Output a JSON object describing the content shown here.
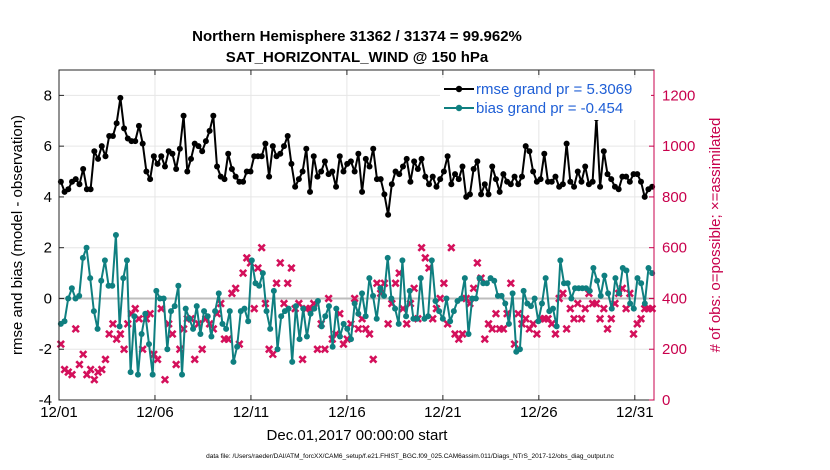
{
  "chart_data": {
    "type": "line",
    "title": "Northern Hemisphere 31362 / 31374 = 99.962%",
    "subtitle": "SAT_HORIZONTAL_WIND @ 150 hPa",
    "xlabel": "Dec.01,2017 00:00:00 start",
    "ylabel": "rmse and bias (model - observation)",
    "y2label": "# of obs: o=possible; ×=assimilated",
    "x_range_days": [
      0,
      31
    ],
    "ylim": [
      -4,
      9
    ],
    "y2lim": [
      0,
      1300
    ],
    "x_ticks": [
      {
        "day": 0,
        "label": "12/01"
      },
      {
        "day": 5,
        "label": "12/06"
      },
      {
        "day": 10,
        "label": "12/11"
      },
      {
        "day": 15,
        "label": "12/16"
      },
      {
        "day": 20,
        "label": "12/21"
      },
      {
        "day": 25,
        "label": "12/26"
      },
      {
        "day": 30,
        "label": "12/31"
      }
    ],
    "y_ticks": [
      {
        "value": 8,
        "label": "8"
      },
      {
        "value": 6,
        "label": "6"
      },
      {
        "value": 4,
        "label": "4"
      },
      {
        "value": 2,
        "label": "2"
      },
      {
        "value": 0,
        "label": "0"
      },
      {
        "value": -2,
        "label": "-2"
      },
      {
        "value": -4,
        "label": "-4"
      }
    ],
    "y2_ticks": [
      {
        "value": 1200,
        "label": "1200"
      },
      {
        "value": 1000,
        "label": "1000"
      },
      {
        "value": 800,
        "label": "800"
      },
      {
        "value": 600,
        "label": "600"
      },
      {
        "value": 400,
        "label": "400"
      },
      {
        "value": 200,
        "label": "200"
      },
      {
        "value": 0,
        "label": "0"
      }
    ],
    "grid": true,
    "zero_line": 0,
    "legend_position": "top-right",
    "series": [
      {
        "name": "rmse grand pr = 5.3069",
        "color": "#000000",
        "axis": "left",
        "values": [
          4.6,
          4.2,
          4.3,
          4.6,
          4.7,
          4.5,
          5.1,
          4.3,
          4.3,
          5.8,
          5.5,
          6.0,
          5.6,
          6.4,
          6.4,
          6.9,
          7.9,
          6.7,
          6.3,
          6.2,
          6.2,
          6.8,
          6.1,
          5.0,
          4.7,
          5.6,
          5.3,
          5.6,
          5.2,
          5.8,
          5.7,
          5.1,
          5.9,
          7.2,
          5.0,
          5.5,
          6.1,
          6.0,
          5.8,
          6.2,
          6.6,
          7.2,
          5.2,
          4.8,
          4.7,
          5.7,
          5.1,
          4.8,
          4.6,
          4.6,
          5.0,
          5.0,
          5.6,
          5.6,
          5.6,
          6.1,
          4.8,
          6.0,
          5.6,
          5.7,
          6.0,
          6.4,
          5.3,
          4.4,
          4.7,
          5.0,
          5.9,
          4.2,
          5.6,
          4.8,
          5.0,
          5.4,
          4.9,
          5.0,
          4.4,
          5.6,
          5.0,
          5.3,
          5.4,
          5.0,
          5.7,
          4.2,
          5.5,
          5.2,
          5.9,
          4.7,
          4.7,
          4.1,
          3.3,
          4.5,
          5.0,
          4.9,
          5.2,
          5.5,
          4.6,
          5.4,
          5.1,
          5.5,
          4.8,
          4.5,
          4.8,
          4.4,
          4.7,
          5.0,
          5.6,
          4.5,
          4.9,
          4.7,
          5.2,
          4.0,
          4.1,
          5.1,
          5.4,
          4.1,
          4.5,
          4.1,
          5.2,
          4.7,
          4.2,
          4.9,
          4.6,
          4.5,
          4.8,
          4.5,
          4.8,
          6.0,
          5.8,
          5.0,
          4.6,
          4.7,
          5.7,
          4.6,
          4.6,
          4.8,
          4.4,
          4.5,
          6.1,
          4.6,
          4.4,
          5.0,
          4.6,
          5.2,
          4.5,
          4.6,
          7.1,
          4.4,
          5.8,
          4.9,
          4.7,
          4.4,
          4.3,
          4.8,
          4.8,
          4.6,
          4.9,
          4.9,
          4.6,
          4.0,
          4.3,
          4.4
        ]
      },
      {
        "name": "bias grand pr = -0.454",
        "color": "#0f7f80",
        "axis": "left",
        "values": [
          -1.0,
          -0.9,
          0.0,
          0.4,
          0.0,
          0.1,
          1.6,
          2.0,
          0.8,
          -0.5,
          -1.2,
          0.7,
          1.5,
          0.5,
          0.5,
          2.5,
          -1.1,
          0.8,
          1.5,
          -2.9,
          -0.7,
          -3.0,
          -1.4,
          -0.6,
          -1.8,
          -3.0,
          0.3,
          0.0,
          0.0,
          -2.0,
          -0.5,
          -0.3,
          0.5,
          -3.0,
          -0.4,
          -0.8,
          -1.2,
          -0.3,
          -1.4,
          -0.5,
          -0.7,
          -1.5,
          -0.5,
          0.2,
          -1.0,
          -1.2,
          -0.5,
          -2.5,
          -1.9,
          -0.5,
          -0.4,
          -0.9,
          1.5,
          0.6,
          0.5,
          1.0,
          -0.5,
          -1.2,
          0.3,
          -2.0,
          -0.7,
          -0.5,
          -0.4,
          -2.5,
          -0.3,
          -1.6,
          -0.4,
          -1.5,
          -0.6,
          -0.4,
          -0.1,
          -1.1,
          -0.7,
          -0.3,
          -1.9,
          -0.4,
          -1.5,
          -1.0,
          -1.2,
          -1.6,
          -0.2,
          -0.6,
          0.2,
          -0.7,
          0.8,
          0.1,
          -0.8,
          0.4,
          0.1,
          1.6,
          0.0,
          -0.4,
          -1.0,
          1.5,
          -0.7,
          0.3,
          -0.8,
          -0.8,
          0.8,
          -0.8,
          -0.7,
          1.5,
          -0.1,
          -0.5,
          -0.8,
          0.0,
          -0.9,
          -0.5,
          -0.1,
          0.0,
          0.8,
          -1.4,
          0.0,
          0.0,
          0.8,
          0.6,
          0.6,
          0.8,
          0.7,
          0.1,
          0.1,
          -0.2,
          -1.0,
          0.2,
          -2.1,
          -2.0,
          0.3,
          -0.2,
          -0.3,
          0.0,
          -0.9,
          -0.2,
          0.8,
          -0.5,
          -0.4,
          -1.1,
          1.5,
          0.6,
          0.6,
          0.0,
          0.4,
          0.4,
          0.4,
          0.4,
          0.3,
          1.2,
          0.7,
          0.1,
          0.9,
          0.2,
          -0.4,
          0.8,
          0.2,
          1.2,
          1.1,
          -0.2,
          -0.4,
          0.8,
          0.6,
          -0.2,
          1.2,
          1.0
        ]
      },
      {
        "name": "# of obs assimilated",
        "color": "#d4105b",
        "axis": "right",
        "marker": "x",
        "values": [
          220,
          120,
          110,
          100,
          280,
          140,
          180,
          100,
          120,
          80,
          110,
          120,
          160,
          260,
          300,
          240,
          260,
          200,
          300,
          340,
          360,
          320,
          200,
          320,
          340,
          180,
          160,
          360,
          80,
          300,
          260,
          140,
          200,
          280,
          320,
          320,
          160,
          300,
          200,
          320,
          300,
          280,
          340,
          380,
          240,
          240,
          420,
          440,
          220,
          500,
          560,
          540,
          360,
          520,
          600,
          380,
          200,
          180,
          460,
          540,
          380,
          460,
          520,
          360,
          380,
          160,
          360,
          360,
          380,
          200,
          300,
          200,
          400,
          240,
          260,
          340,
          220,
          240,
          300,
          400,
          280,
          320,
          280,
          260,
          160,
          460,
          420,
          460,
          300,
          380,
          460,
          500,
          360,
          300,
          380,
          440,
          320,
          600,
          560,
          520,
          320,
          360,
          400,
          460,
          300,
          600,
          260,
          240,
          260,
          400,
          380,
          440,
          540,
          480,
          240,
          300,
          280,
          340,
          280,
          280,
          340,
          460,
          220,
          340,
          300,
          320,
          280,
          300,
          260,
          320,
          320,
          320,
          300,
          260,
          400,
          420,
          280,
          360,
          320,
          380,
          320,
          360,
          420,
          380,
          380,
          320,
          360,
          280,
          320,
          380,
          420,
          440,
          360,
          420,
          260,
          300,
          320,
          360,
          360,
          360
        ]
      }
    ]
  },
  "footnote": "data file: /Users/raeder/DAI/ATM_forcXX/CAM6_setup/f.e21.FHIST_BGC.f09_025.CAM6assim.011/Diags_NTrS_2017-12/obs_diag_output.nc"
}
